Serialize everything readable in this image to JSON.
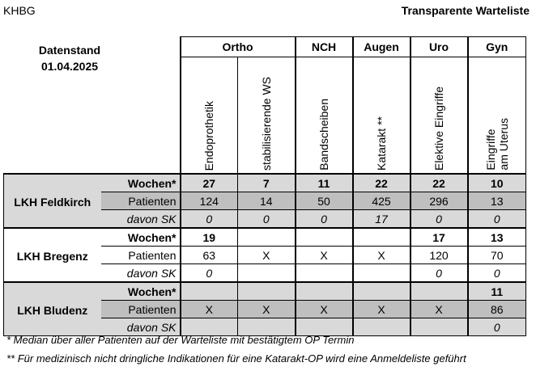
{
  "header": {
    "org": "KHBG",
    "title": "Transparente Warteliste"
  },
  "stand": {
    "label": "Datenstand",
    "date": "01.04.2025"
  },
  "departments": [
    "Ortho",
    "NCH",
    "Augen",
    "Uro",
    "Gyn"
  ],
  "procedures": [
    "Endoprothetik",
    "stabilisierende WS",
    "Bandscheiben",
    "Katarakt **",
    "Elektive Eingriffe",
    "Eingriffe\nam Uterus"
  ],
  "procedure_gyn_line1": "Eingriffe",
  "procedure_gyn_line2": "am Uterus",
  "row_labels": {
    "wochen": "Wochen*",
    "patienten": "Patienten",
    "sk": "davon SK"
  },
  "sites": [
    {
      "name": "LKH Feldkirch",
      "wochen": [
        "27",
        "7",
        "11",
        "22",
        "22",
        "10"
      ],
      "patienten": [
        "124",
        "14",
        "50",
        "425",
        "296",
        "13"
      ],
      "sk": [
        "0",
        "0",
        "0",
        "17",
        "0",
        "0"
      ]
    },
    {
      "name": "LKH Bregenz",
      "wochen": [
        "19",
        "",
        "",
        "",
        "17",
        "13"
      ],
      "patienten": [
        "63",
        "X",
        "X",
        "X",
        "120",
        "70"
      ],
      "sk": [
        "0",
        "",
        "",
        "",
        "0",
        "0"
      ]
    },
    {
      "name": "LKH Bludenz",
      "wochen": [
        "",
        "",
        "",
        "",
        "",
        "11"
      ],
      "patienten": [
        "X",
        "X",
        "X",
        "X",
        "X",
        "86"
      ],
      "sk": [
        "",
        "",
        "",
        "",
        "",
        "0"
      ]
    }
  ],
  "footnotes": [
    "*   Median über aller Patienten auf der Warteliste mit bestätigtem OP Termin",
    "** Für medizinisch nicht dringliche Indikationen für eine Katarakt-OP wird eine Anmeldeliste geführt"
  ]
}
